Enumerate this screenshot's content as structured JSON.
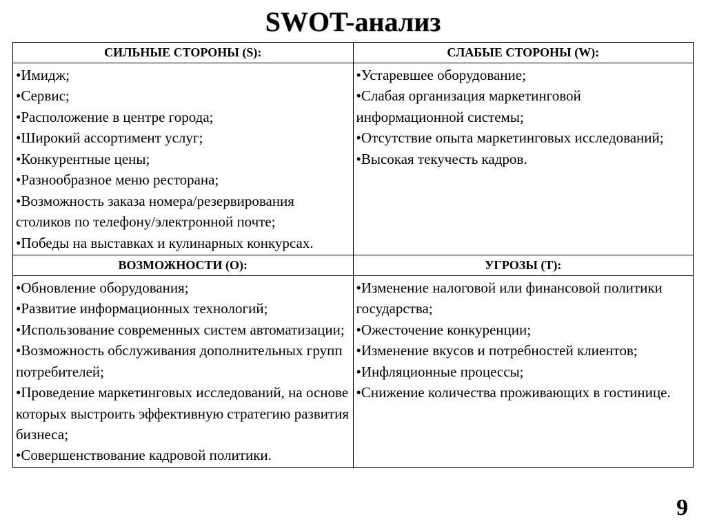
{
  "title": "SWOT-анализ",
  "page_number": "9",
  "headers": {
    "s": "СИЛЬНЫЕ СТОРОНЫ (S):",
    "w": "СЛАБЫЕ СТОРОНЫ (W):",
    "o": "ВОЗМОЖНОСТИ (O):",
    "t": "УГРОЗЫ (T):"
  },
  "cells": {
    "s": [
      "•Имидж;",
      "•Сервис;",
      "•Расположение в центре города;",
      "•Широкий ассортимент услуг;",
      "•Конкурентные цены;",
      "•Разнообразное меню ресторана;",
      "•Возможность заказа номера/резервирования столиков по телефону/электронной почте;",
      "•Победы на выставках и кулинарных конкурсах."
    ],
    "w": [
      "•Устаревшее оборудование;",
      "•Слабая организация маркетинговой информационной системы;",
      "•Отсутствие опыта маркетинговых исследований;",
      "•Высокая текучесть кадров."
    ],
    "o": [
      "•Обновление оборудования;",
      "•Развитие информационных технологий;",
      "•Использование современных систем автоматизации;",
      "•Возможность обслуживания дополнительных групп потребителей;",
      "•Проведение маркетинговых исследований, на основе которых выстроить эффективную стратегию развития бизнеса;",
      "•Совершенствование кадровой политики."
    ],
    "t": [
      "•Изменение налоговой или финансовой политики государства;",
      "•Ожесточение конкуренции;",
      "•Изменение вкусов и потребностей клиентов;",
      "•Инфляционные процессы;",
      "•Снижение количества проживающих в гостинице."
    ]
  },
  "style": {
    "background_color": "#ffffff",
    "text_color": "#000000",
    "border_color": "#000000",
    "title_fontsize": 40,
    "header_fontsize": 18,
    "body_fontsize": 21,
    "page_number_fontsize": 34,
    "font_family": "Times New Roman"
  }
}
